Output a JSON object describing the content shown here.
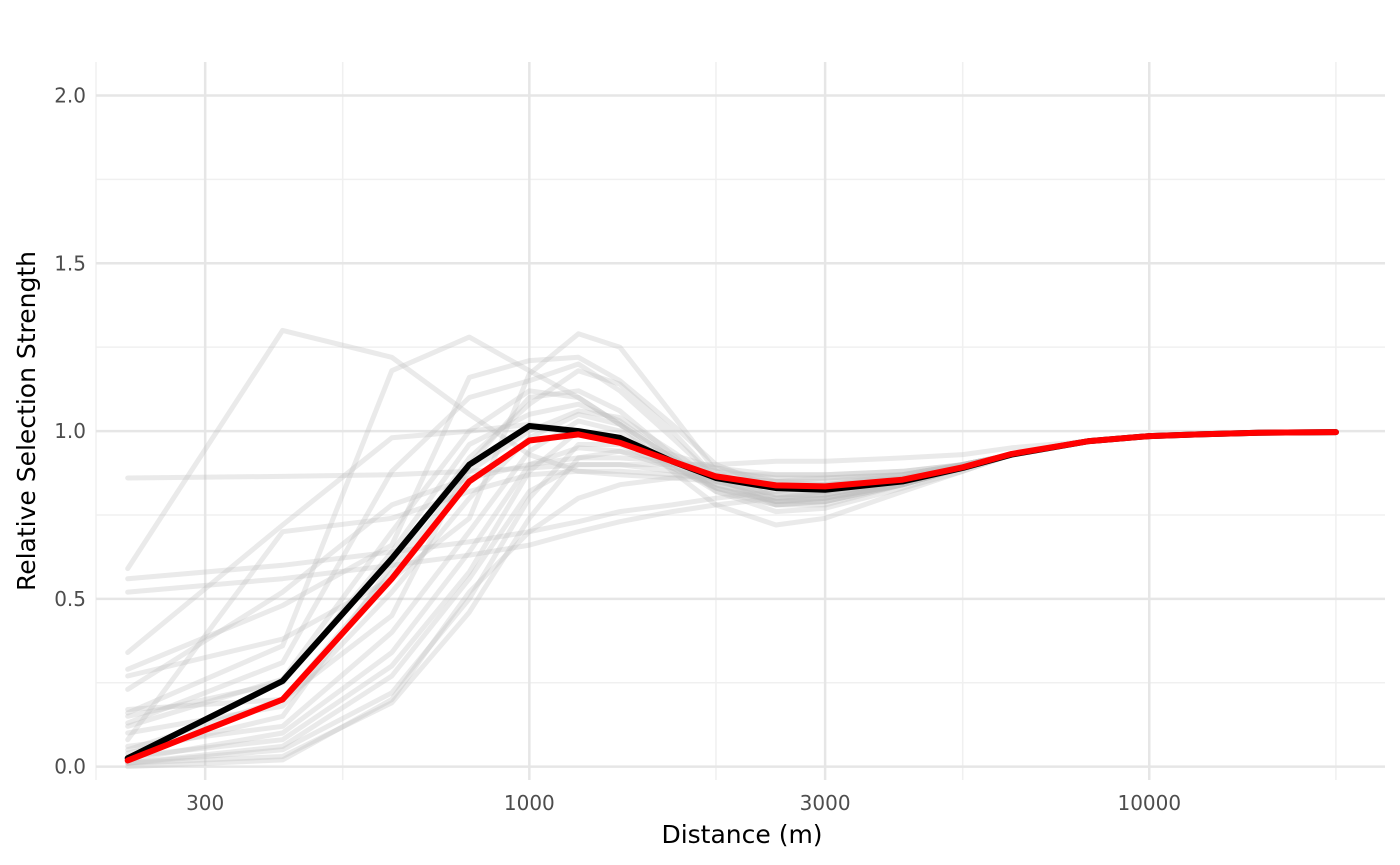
{
  "chart_data": {
    "type": "line",
    "xlabel": "Distance (m)",
    "ylabel": "Relative Selection Strength",
    "x_scale": "log10",
    "xlim": [
      200,
      24000
    ],
    "ylim": [
      -0.04,
      2.1
    ],
    "x_ticks": [
      300,
      1000,
      3000,
      10000
    ],
    "x_minor_ticks": [
      200,
      500,
      2000,
      5000,
      20000
    ],
    "y_ticks": [
      0.0,
      0.5,
      1.0,
      1.5,
      2.0
    ],
    "y_minor_ticks": [
      0.25,
      0.75,
      1.25,
      1.75
    ],
    "grid": true,
    "legend": "none",
    "x": [
      225,
      400,
      600,
      800,
      1000,
      1200,
      1400,
      1700,
      2000,
      2500,
      3000,
      4000,
      5000,
      6000,
      8000,
      10000,
      12000,
      15000,
      20000
    ],
    "background_series_color": "#bfbfbf",
    "mean_color": "#000000",
    "highlight_color": "#ff0000",
    "background_series": [
      [
        0.59,
        1.3,
        1.22,
        1.05,
        0.93,
        0.88,
        0.87,
        0.86,
        0.85,
        0.84,
        0.84,
        0.86,
        0.9,
        0.93,
        0.97,
        0.985,
        0.99,
        0.995,
        0.997
      ],
      [
        0.86,
        0.865,
        0.87,
        0.88,
        0.89,
        0.9,
        0.9,
        0.9,
        0.9,
        0.91,
        0.91,
        0.92,
        0.93,
        0.95,
        0.97,
        0.985,
        0.99,
        0.995,
        0.997
      ],
      [
        0.56,
        0.6,
        0.64,
        0.67,
        0.7,
        0.73,
        0.76,
        0.78,
        0.8,
        0.82,
        0.84,
        0.87,
        0.9,
        0.93,
        0.97,
        0.985,
        0.99,
        0.995,
        0.997
      ],
      [
        0.52,
        0.56,
        0.6,
        0.63,
        0.66,
        0.7,
        0.73,
        0.76,
        0.78,
        0.8,
        0.82,
        0.86,
        0.9,
        0.93,
        0.97,
        0.985,
        0.99,
        0.995,
        0.997
      ],
      [
        0.34,
        0.72,
        0.98,
        1.0,
        1.02,
        1.0,
        0.97,
        0.93,
        0.89,
        0.85,
        0.84,
        0.86,
        0.9,
        0.93,
        0.97,
        0.985,
        0.99,
        0.995,
        0.997
      ],
      [
        0.29,
        0.48,
        0.66,
        1.16,
        1.21,
        1.22,
        1.15,
        1.02,
        0.9,
        0.83,
        0.82,
        0.85,
        0.89,
        0.93,
        0.97,
        0.985,
        0.99,
        0.995,
        0.997
      ],
      [
        0.27,
        0.38,
        0.56,
        0.74,
        1.17,
        1.29,
        1.25,
        1.05,
        0.88,
        0.8,
        0.8,
        0.84,
        0.89,
        0.93,
        0.97,
        0.985,
        0.99,
        0.995,
        0.997
      ],
      [
        0.16,
        0.36,
        1.18,
        1.28,
        1.18,
        1.1,
        1.02,
        0.92,
        0.85,
        0.81,
        0.81,
        0.85,
        0.89,
        0.93,
        0.97,
        0.985,
        0.99,
        0.995,
        0.997
      ],
      [
        0.13,
        0.31,
        0.88,
        1.1,
        1.15,
        1.2,
        1.12,
        0.98,
        0.86,
        0.79,
        0.79,
        0.84,
        0.89,
        0.93,
        0.97,
        0.985,
        0.99,
        0.995,
        0.997
      ],
      [
        0.17,
        0.2,
        0.45,
        0.9,
        1.1,
        1.12,
        1.06,
        0.93,
        0.82,
        0.76,
        0.77,
        0.83,
        0.88,
        0.93,
        0.97,
        0.985,
        0.99,
        0.995,
        0.997
      ],
      [
        0.08,
        0.7,
        0.74,
        0.82,
        0.87,
        0.88,
        0.88,
        0.87,
        0.86,
        0.85,
        0.85,
        0.87,
        0.9,
        0.93,
        0.97,
        0.985,
        0.99,
        0.995,
        0.997
      ],
      [
        0.15,
        0.25,
        0.64,
        0.96,
        1.05,
        1.08,
        1.03,
        0.92,
        0.83,
        0.78,
        0.79,
        0.84,
        0.89,
        0.93,
        0.97,
        0.985,
        0.99,
        0.995,
        0.997
      ],
      [
        0.1,
        0.18,
        0.52,
        0.8,
        0.98,
        1.05,
        1.02,
        0.92,
        0.84,
        0.79,
        0.8,
        0.84,
        0.89,
        0.93,
        0.97,
        0.985,
        0.99,
        0.995,
        0.997
      ],
      [
        0.06,
        0.12,
        0.4,
        0.7,
        0.94,
        1.03,
        1.0,
        0.9,
        0.82,
        0.78,
        0.79,
        0.84,
        0.89,
        0.93,
        0.97,
        0.985,
        0.99,
        0.995,
        0.997
      ],
      [
        0.03,
        0.08,
        0.3,
        0.58,
        0.88,
        1.0,
        0.98,
        0.9,
        0.83,
        0.79,
        0.8,
        0.84,
        0.89,
        0.93,
        0.97,
        0.985,
        0.99,
        0.995,
        0.997
      ],
      [
        0.01,
        0.05,
        0.22,
        0.5,
        0.8,
        0.96,
        0.96,
        0.89,
        0.83,
        0.79,
        0.8,
        0.84,
        0.89,
        0.93,
        0.97,
        0.985,
        0.99,
        0.995,
        0.997
      ],
      [
        0.01,
        0.03,
        0.19,
        0.46,
        0.74,
        0.92,
        0.94,
        0.89,
        0.84,
        0.8,
        0.81,
        0.85,
        0.89,
        0.93,
        0.97,
        0.985,
        0.99,
        0.995,
        0.997
      ],
      [
        0.04,
        0.15,
        0.6,
        0.92,
        1.08,
        1.18,
        1.14,
        1.0,
        0.86,
        0.78,
        0.78,
        0.84,
        0.89,
        0.93,
        0.97,
        0.985,
        0.99,
        0.995,
        0.997
      ],
      [
        0.02,
        0.1,
        0.34,
        0.64,
        0.9,
        0.95,
        0.94,
        0.91,
        0.88,
        0.86,
        0.86,
        0.87,
        0.9,
        0.93,
        0.97,
        0.985,
        0.99,
        0.995,
        0.997
      ],
      [
        0.01,
        0.06,
        0.27,
        0.56,
        0.82,
        0.9,
        0.9,
        0.88,
        0.86,
        0.85,
        0.86,
        0.87,
        0.9,
        0.93,
        0.97,
        0.985,
        0.99,
        0.995,
        0.997
      ],
      [
        0.12,
        0.26,
        0.7,
        1.0,
        1.12,
        1.1,
        1.02,
        0.88,
        0.78,
        0.72,
        0.74,
        0.82,
        0.88,
        0.93,
        0.97,
        0.985,
        0.99,
        0.995,
        0.997
      ],
      [
        0.05,
        0.2,
        0.58,
        0.88,
        1.0,
        1.06,
        1.04,
        0.94,
        0.85,
        0.81,
        0.81,
        0.85,
        0.89,
        0.93,
        0.97,
        0.985,
        0.99,
        0.995,
        0.997
      ],
      [
        0.0,
        0.02,
        0.2,
        0.52,
        0.7,
        0.8,
        0.84,
        0.86,
        0.87,
        0.87,
        0.87,
        0.88,
        0.9,
        0.93,
        0.97,
        0.985,
        0.99,
        0.995,
        0.997
      ],
      [
        0.23,
        0.52,
        0.78,
        0.86,
        0.9,
        0.92,
        0.92,
        0.91,
        0.89,
        0.87,
        0.87,
        0.88,
        0.9,
        0.93,
        0.97,
        0.985,
        0.99,
        0.995,
        0.997
      ]
    ],
    "series": [
      {
        "values": [
          0.025,
          0.255,
          0.62,
          0.9,
          1.015,
          1.0,
          0.98,
          0.91,
          0.86,
          0.83,
          0.825,
          0.85,
          0.89,
          0.93,
          0.97,
          0.985,
          0.99,
          0.995,
          0.997
        ]
      },
      {
        "values": [
          0.018,
          0.2,
          0.56,
          0.85,
          0.972,
          0.99,
          0.965,
          0.91,
          0.865,
          0.838,
          0.835,
          0.855,
          0.892,
          0.932,
          0.97,
          0.985,
          0.99,
          0.995,
          0.997
        ]
      }
    ]
  }
}
